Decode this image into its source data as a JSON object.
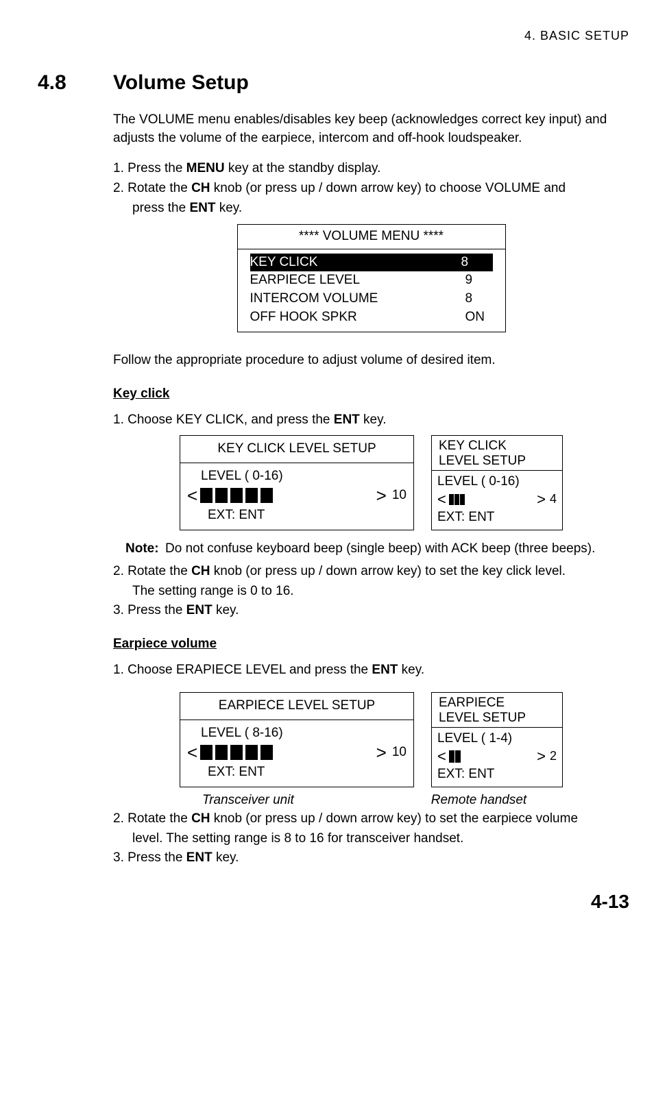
{
  "header": {
    "chapter": "4.  BASIC  SETUP"
  },
  "section": {
    "number": "4.8",
    "title": "Volume Setup"
  },
  "intro": "The VOLUME menu enables/disables key beep (acknowledges correct key input) and adjusts the volume of the earpiece, intercom and off-hook loudspeaker.",
  "steps_top": {
    "s1_a": "1. Press the ",
    "s1_b": "MENU",
    "s1_c": " key at the standby display.",
    "s2_a": "2. Rotate the ",
    "s2_b": "CH",
    "s2_c": " knob (or press up / down arrow key) to choose VOLUME and",
    "s2_d": "press the ",
    "s2_e": "ENT",
    "s2_f": " key."
  },
  "volume_menu": {
    "title": "**** VOLUME MENU ****",
    "rows": [
      {
        "label": "KEY CLICK",
        "value": "8",
        "selected": true
      },
      {
        "label": "EARPIECE LEVEL",
        "value": "9",
        "selected": false
      },
      {
        "label": "INTERCOM VOLUME",
        "value": "8",
        "selected": false
      },
      {
        "label": "OFF HOOK SPKR",
        "value": "ON",
        "selected": false
      }
    ]
  },
  "follow": "Follow the appropriate procedure to adjust volume of desired item.",
  "keyclick": {
    "heading": "Key click",
    "s1_a": "1. Choose KEY CLICK, and press the ",
    "s1_b": "ENT",
    "s1_c": " key.",
    "lcd_wide": {
      "title": "KEY CLICK LEVEL SETUP",
      "level_label": "LEVEL  ( 0-16)",
      "bars": 5,
      "bar_max": 16,
      "value": "10",
      "ext": "EXT: ENT"
    },
    "lcd_narrow": {
      "title_l1": "KEY CLICK",
      "title_l2": "LEVEL SETUP",
      "level_label": "LEVEL  ( 0-16)",
      "bars": 3,
      "value": "4",
      "ext": "EXT: ENT"
    },
    "note_label": "Note:",
    "note_text": "Do not confuse keyboard beep (single beep) with ACK beep (three beeps).",
    "s2_a": "2. Rotate the ",
    "s2_b": "CH",
    "s2_c": " knob (or press up / down arrow key) to set the key click level.",
    "s2_d": "The setting range is 0 to 16.",
    "s3_a": "3. Press the ",
    "s3_b": "ENT",
    "s3_c": " key."
  },
  "earpiece": {
    "heading": "Earpiece volume",
    "s1_a": "1. Choose ERAPIECE LEVEL and press the ",
    "s1_b": "ENT",
    "s1_c": " key.",
    "lcd_wide": {
      "title": "EARPIECE LEVEL SETUP",
      "level_label": "LEVEL  ( 8-16)",
      "bars": 5,
      "value": "10",
      "ext": "EXT: ENT"
    },
    "lcd_narrow": {
      "title_l1": "EARPIECE",
      "title_l2": "LEVEL SETUP",
      "level_label": "LEVEL  ( 1-4)",
      "bars": 2,
      "value": "2",
      "ext": "EXT: ENT"
    },
    "caption_left": "Transceiver unit",
    "caption_right": "Remote handset",
    "s2_a": "2. Rotate the ",
    "s2_b": "CH",
    "s2_c": " knob (or press up / down arrow key) to set the earpiece volume",
    "s2_d": "level. The setting range is 8 to 16 for transceiver handset.",
    "s3_a": "3. Press the ",
    "s3_b": "ENT",
    "s3_c": " key."
  },
  "footer": "4-13"
}
